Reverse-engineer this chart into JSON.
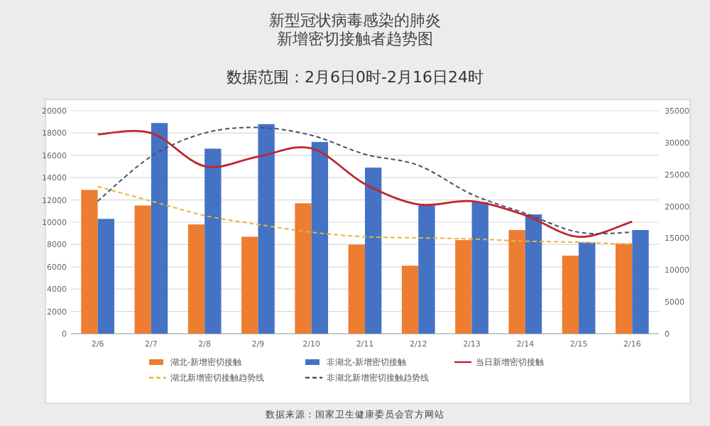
{
  "chart_data": {
    "type": "bar",
    "title": "新型冠状病毒感染的肺炎新增密切接触者趋势图",
    "subtitle": "数据范围：2月6日0时-2月16日24时",
    "categories": [
      "2/6",
      "2/7",
      "2/8",
      "2/9",
      "2/10",
      "2/11",
      "2/12",
      "2/13",
      "2/14",
      "2/15",
      "2/16"
    ],
    "series": [
      {
        "name": "湖北-新增密切接触",
        "color": "#ed7d31",
        "values": [
          12900,
          11500,
          9800,
          8700,
          11700,
          8000,
          6100,
          8400,
          9300,
          7000,
          8100
        ]
      },
      {
        "name": "非湖北-新增密切接触",
        "color": "#4472c4",
        "values": [
          10300,
          18900,
          16600,
          18800,
          17200,
          14900,
          11500,
          11800,
          10700,
          8200,
          9300
        ]
      },
      {
        "name": "当日新增密切接触",
        "type": "line",
        "axis": "y2",
        "color": "#c0262d",
        "line_style": "solid",
        "values": [
          31300,
          31500,
          26300,
          27800,
          29100,
          23500,
          20300,
          20800,
          18600,
          15200,
          17600
        ]
      },
      {
        "name": "湖北新增密切接触趋势线",
        "type": "line",
        "color": "#e6b43c",
        "line_style": "dashed",
        "values": [
          13200,
          11900,
          10600,
          9800,
          9100,
          8700,
          8600,
          8500,
          8300,
          8200,
          8000
        ]
      },
      {
        "name": "非湖北新增密切接触趋势线",
        "type": "line",
        "color": "#44546a",
        "line_style": "dashed",
        "values": [
          11900,
          15900,
          18000,
          18500,
          17800,
          16100,
          15100,
          12500,
          10800,
          9100,
          9100
        ]
      }
    ],
    "ylim": [
      0,
      20000
    ],
    "yticks": [
      0,
      2000,
      4000,
      6000,
      8000,
      10000,
      12000,
      14000,
      16000,
      18000,
      20000
    ],
    "y2lim": [
      0,
      35000
    ],
    "y2ticks": [
      0,
      5000,
      10000,
      15000,
      20000,
      25000,
      30000,
      35000
    ],
    "grid": "y",
    "legend": "bottom",
    "marker": "none",
    "annotations": [
      "数据来源：国家卫生健康委员会官方网站"
    ]
  }
}
